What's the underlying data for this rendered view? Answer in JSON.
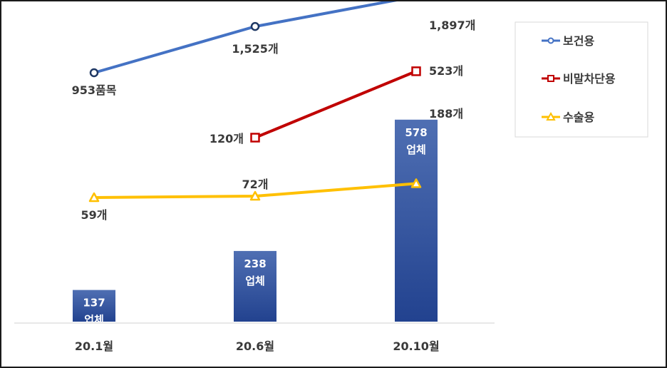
{
  "chart_data": {
    "type": "bar+line",
    "categories": [
      "20.1월",
      "20.6월",
      "20.10월"
    ],
    "bars": {
      "values": [
        137,
        238,
        578
      ],
      "labels": [
        [
          "137",
          "업체"
        ],
        [
          "238",
          "업체"
        ],
        [
          "578",
          "업체"
        ]
      ],
      "color_top": "#4f6fb3",
      "color_bottom": "#22428f"
    },
    "series": [
      {
        "name": "보건용",
        "marker": "circle",
        "color": "#4472c4",
        "values": [
          953,
          1525,
          1897
        ],
        "labels": [
          "953품목",
          "1,525개",
          "1,897개"
        ]
      },
      {
        "name": "비말차단용",
        "marker": "square",
        "color": "#c00000",
        "values": [
          null,
          120,
          523
        ],
        "labels": [
          null,
          "120개",
          "523개"
        ]
      },
      {
        "name": "수술용",
        "marker": "triangle",
        "color": "#ffc000",
        "values": [
          59,
          72,
          188
        ],
        "labels": [
          "59개",
          "72개",
          "188개"
        ]
      }
    ],
    "legend": {
      "position": "top-right"
    },
    "grid": false
  }
}
